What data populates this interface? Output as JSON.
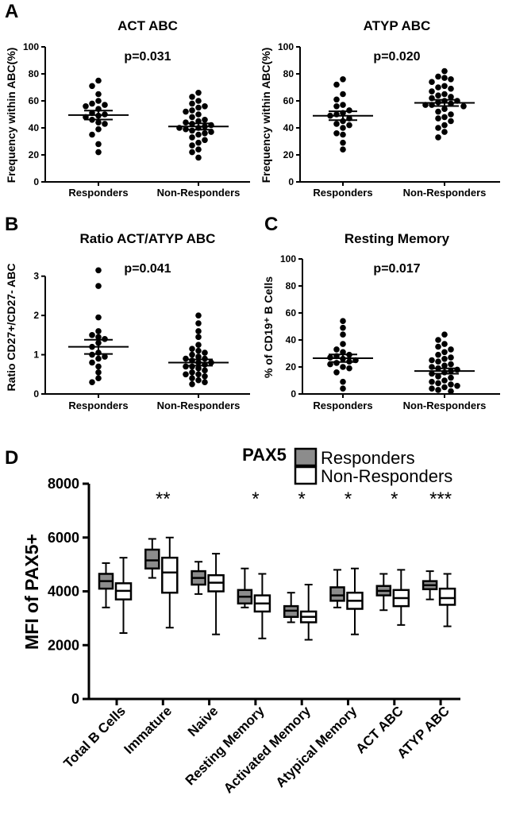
{
  "chart_data": [
    {
      "type": "scatter",
      "panel": "A",
      "title": "ACT ABC",
      "annotation": "p=0.031",
      "ylabel": "Frequency within ABC(%)",
      "ylim": [
        0,
        100
      ],
      "yticks": [
        0,
        20,
        40,
        60,
        80,
        100
      ],
      "categories": [
        "Responders",
        "Non-Responders"
      ],
      "series": [
        {
          "category": "Responders",
          "mean": 49.5,
          "sem": 3.3,
          "values": [
            75,
            71,
            65,
            60,
            58,
            57,
            56,
            54,
            51,
            50,
            49,
            48,
            46,
            44,
            43,
            39,
            35,
            28,
            22
          ]
        },
        {
          "category": "Non-Responders",
          "mean": 41,
          "sem": 2.3,
          "values": [
            66,
            63,
            60,
            58,
            56,
            55,
            53,
            52,
            50,
            48,
            46,
            45,
            44,
            43,
            42,
            41,
            40,
            40,
            39,
            38,
            37,
            36,
            35,
            33,
            31,
            29,
            27,
            24,
            22,
            18
          ]
        }
      ]
    },
    {
      "type": "scatter",
      "panel": "",
      "title": "ATYP ABC",
      "annotation": "p=0.020",
      "ylabel": "Frequency within ABC(%)",
      "ylim": [
        0,
        100
      ],
      "yticks": [
        0,
        20,
        40,
        60,
        80,
        100
      ],
      "categories": [
        "Responders",
        "Non-Responders"
      ],
      "series": [
        {
          "category": "Responders",
          "mean": 49,
          "sem": 3.3,
          "values": [
            76,
            72,
            65,
            61,
            57,
            56,
            53,
            51,
            50,
            49,
            47,
            45,
            43,
            42,
            40,
            36,
            35,
            29,
            24
          ]
        },
        {
          "category": "Non-Responders",
          "mean": 58.5,
          "sem": 2.3,
          "values": [
            82,
            78,
            77,
            76,
            74,
            71,
            70,
            69,
            67,
            65,
            64,
            63,
            62,
            60,
            60,
            59,
            58,
            57,
            57,
            56,
            54,
            52,
            50,
            48,
            47,
            45,
            42,
            40,
            37,
            33
          ]
        }
      ]
    },
    {
      "type": "scatter",
      "panel": "B",
      "title": "Ratio ACT/ATYP ABC",
      "annotation": "p=0.041",
      "ylabel": "Ratio CD27+/CD27- ABC",
      "ylim": [
        0,
        3.5
      ],
      "yticks": [
        0,
        1,
        2,
        3
      ],
      "categories": [
        "Responders",
        "Non-Responders"
      ],
      "series": [
        {
          "category": "Responders",
          "mean": 1.2,
          "sem": 0.18,
          "values": [
            3.15,
            2.75,
            1.95,
            1.6,
            1.5,
            1.45,
            1.4,
            1.3,
            1.2,
            1.05,
            1.0,
            0.95,
            0.9,
            0.8,
            0.7,
            0.55,
            0.4,
            0.3
          ]
        },
        {
          "category": "Non-Responders",
          "mean": 0.8,
          "sem": 0.08,
          "values": [
            2.0,
            1.8,
            1.6,
            1.45,
            1.25,
            1.15,
            1.1,
            1.05,
            1.0,
            0.95,
            0.9,
            0.9,
            0.85,
            0.8,
            0.8,
            0.75,
            0.7,
            0.7,
            0.65,
            0.6,
            0.55,
            0.5,
            0.5,
            0.45,
            0.4,
            0.35,
            0.3,
            0.25
          ]
        }
      ]
    },
    {
      "type": "scatter",
      "panel": "C",
      "title": "Resting Memory",
      "annotation": "p=0.017",
      "ylabel": "% of CD19⁺ B Cells",
      "ylim": [
        0,
        100
      ],
      "yticks": [
        0,
        20,
        40,
        60,
        80,
        100
      ],
      "categories": [
        "Responders",
        "Non-Responders"
      ],
      "series": [
        {
          "category": "Responders",
          "mean": 26.5,
          "sem": 2.8,
          "values": [
            54,
            49,
            44,
            37,
            33,
            31,
            29,
            28,
            27,
            26,
            25,
            24,
            23,
            22,
            20,
            19,
            16,
            9,
            4
          ]
        },
        {
          "category": "Non-Responders",
          "mean": 17,
          "sem": 2.0,
          "values": [
            44,
            40,
            37,
            35,
            33,
            31,
            29,
            27,
            26,
            25,
            24,
            22,
            21,
            20,
            19,
            18,
            17,
            16,
            15,
            13,
            12,
            10,
            9,
            8,
            7,
            6,
            5,
            4,
            3,
            2
          ]
        }
      ]
    },
    {
      "type": "box",
      "panel": "D",
      "title": "PAX5",
      "ylabel": "MFI of PAX5+",
      "ylim": [
        0,
        8000
      ],
      "yticks": [
        0,
        2000,
        4000,
        6000,
        8000
      ],
      "legend": [
        {
          "name": "Responders",
          "color": "#8c8c8c"
        },
        {
          "name": "Non-Responders",
          "color": "#ffffff"
        }
      ],
      "categories": [
        "Total B Cells",
        "Immature",
        "Naive",
        "Resting Memory",
        "Activated Memory",
        "Atypical Memory",
        "ACT ABC",
        "ATYP ABC"
      ],
      "significance": [
        "",
        "**",
        "",
        "*",
        "*",
        "*",
        "*",
        "***"
      ],
      "series": [
        {
          "name": "Responders",
          "boxes": [
            {
              "min": 3400,
              "q1": 4100,
              "median": 4380,
              "q3": 4650,
              "max": 5050
            },
            {
              "min": 4500,
              "q1": 4850,
              "median": 5150,
              "q3": 5550,
              "max": 5950
            },
            {
              "min": 3900,
              "q1": 4250,
              "median": 4500,
              "q3": 4750,
              "max": 5100
            },
            {
              "min": 3400,
              "q1": 3550,
              "median": 3800,
              "q3": 4050,
              "max": 4850
            },
            {
              "min": 2850,
              "q1": 3050,
              "median": 3280,
              "q3": 3450,
              "max": 3950
            },
            {
              "min": 3400,
              "q1": 3650,
              "median": 3850,
              "q3": 4150,
              "max": 4800
            },
            {
              "min": 3300,
              "q1": 3850,
              "median": 4020,
              "q3": 4200,
              "max": 4650
            },
            {
              "min": 3700,
              "q1": 4080,
              "median": 4230,
              "q3": 4380,
              "max": 4750
            }
          ]
        },
        {
          "name": "Non-Responders",
          "boxes": [
            {
              "min": 2450,
              "q1": 3700,
              "median": 4020,
              "q3": 4300,
              "max": 5250
            },
            {
              "min": 2650,
              "q1": 3950,
              "median": 4700,
              "q3": 5250,
              "max": 6000
            },
            {
              "min": 2400,
              "q1": 4000,
              "median": 4320,
              "q3": 4600,
              "max": 5400
            },
            {
              "min": 2250,
              "q1": 3250,
              "median": 3550,
              "q3": 3850,
              "max": 4650
            },
            {
              "min": 2200,
              "q1": 2850,
              "median": 3050,
              "q3": 3250,
              "max": 4250
            },
            {
              "min": 2400,
              "q1": 3350,
              "median": 3650,
              "q3": 3950,
              "max": 4850
            },
            {
              "min": 2750,
              "q1": 3450,
              "median": 3750,
              "q3": 4050,
              "max": 4800
            },
            {
              "min": 2700,
              "q1": 3500,
              "median": 3750,
              "q3": 4100,
              "max": 4650
            }
          ]
        }
      ]
    }
  ]
}
